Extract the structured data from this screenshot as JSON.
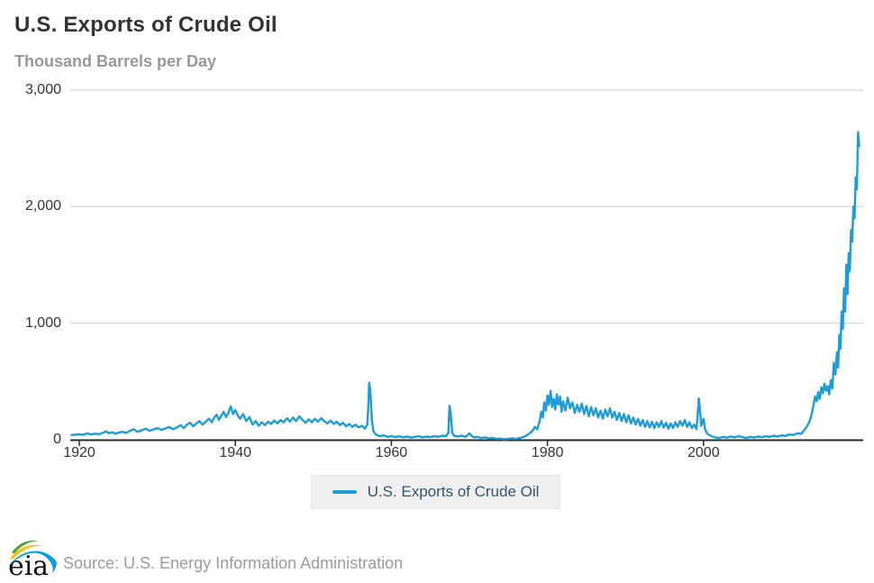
{
  "title": "U.S. Exports of Crude Oil",
  "subtitle": "Thousand Barrels per Day",
  "legend": {
    "label": "U.S. Exports of Crude Oil"
  },
  "source": "Source: U.S. Energy Information Administration",
  "logo": {
    "text": "eia"
  },
  "colors": {
    "line": "#1e9cd7",
    "grid": "#cccccc",
    "axis": "#2b2b2b",
    "title": "#333333",
    "subtitle": "#999999",
    "tick_label": "#333333",
    "legend_bg": "#f0f0f0",
    "legend_text": "#33566e",
    "source_text": "#9b9b9b",
    "logo_green": "#4fa02e",
    "logo_yellow": "#f2c213",
    "logo_blue": "#0c9ed9"
  },
  "chart_data": {
    "type": "line",
    "title": "U.S. Exports of Crude Oil",
    "xlabel": "",
    "ylabel": "Thousand Barrels per Day",
    "x_range": [
      1919,
      2020
    ],
    "ylim": [
      0,
      3000
    ],
    "grid": "horizontal",
    "legend_position": "bottom-center",
    "y_ticks": [
      {
        "value": 0,
        "label": "0"
      },
      {
        "value": 1000,
        "label": "1,000"
      },
      {
        "value": 2000,
        "label": "2,000"
      },
      {
        "value": 3000,
        "label": "3,000"
      }
    ],
    "x_ticks": [
      {
        "value": 1920,
        "label": "1920"
      },
      {
        "value": 1940,
        "label": "1940"
      },
      {
        "value": 1960,
        "label": "1960"
      },
      {
        "value": 1980,
        "label": "1980"
      },
      {
        "value": 2000,
        "label": "2000"
      }
    ],
    "series": [
      {
        "name": "U.S. Exports of Crude Oil",
        "color": "#1e9cd7",
        "points": [
          [
            1919,
            40
          ],
          [
            1920,
            47
          ],
          [
            1920.5,
            42
          ],
          [
            1921,
            55
          ],
          [
            1921.5,
            45
          ],
          [
            1922,
            52
          ],
          [
            1922.5,
            48
          ],
          [
            1923,
            58
          ],
          [
            1923.4,
            72
          ],
          [
            1923.8,
            55
          ],
          [
            1924.2,
            65
          ],
          [
            1924.6,
            52
          ],
          [
            1925,
            60
          ],
          [
            1925.5,
            68
          ],
          [
            1926,
            58
          ],
          [
            1926.5,
            78
          ],
          [
            1927,
            90
          ],
          [
            1927.4,
            68
          ],
          [
            1928,
            80
          ],
          [
            1928.5,
            95
          ],
          [
            1929,
            78
          ],
          [
            1929.5,
            88
          ],
          [
            1930,
            100
          ],
          [
            1930.5,
            85
          ],
          [
            1931,
            95
          ],
          [
            1931.5,
            110
          ],
          [
            1932,
            90
          ],
          [
            1932.5,
            105
          ],
          [
            1933,
            125
          ],
          [
            1933.4,
            100
          ],
          [
            1933.8,
            130
          ],
          [
            1934.2,
            145
          ],
          [
            1934.6,
            115
          ],
          [
            1935,
            140
          ],
          [
            1935.4,
            160
          ],
          [
            1935.8,
            130
          ],
          [
            1936.2,
            155
          ],
          [
            1936.6,
            180
          ],
          [
            1937,
            150
          ],
          [
            1937.3,
            190
          ],
          [
            1937.6,
            215
          ],
          [
            1937.9,
            170
          ],
          [
            1938.2,
            205
          ],
          [
            1938.5,
            240
          ],
          [
            1938.8,
            195
          ],
          [
            1939.1,
            230
          ],
          [
            1939.4,
            287
          ],
          [
            1939.7,
            220
          ],
          [
            1940,
            255
          ],
          [
            1940.3,
            210
          ],
          [
            1940.6,
            180
          ],
          [
            1941,
            220
          ],
          [
            1941.4,
            160
          ],
          [
            1941.8,
            195
          ],
          [
            1942.2,
            130
          ],
          [
            1942.6,
            160
          ],
          [
            1943,
            120
          ],
          [
            1943.4,
            150
          ],
          [
            1943.8,
            125
          ],
          [
            1944.2,
            155
          ],
          [
            1944.6,
            135
          ],
          [
            1945,
            165
          ],
          [
            1945.4,
            140
          ],
          [
            1945.8,
            170
          ],
          [
            1946.2,
            150
          ],
          [
            1946.6,
            185
          ],
          [
            1947,
            155
          ],
          [
            1947.4,
            190
          ],
          [
            1947.8,
            160
          ],
          [
            1948.2,
            200
          ],
          [
            1948.6,
            170
          ],
          [
            1949,
            145
          ],
          [
            1949.4,
            175
          ],
          [
            1949.8,
            150
          ],
          [
            1950.2,
            180
          ],
          [
            1950.6,
            155
          ],
          [
            1951,
            185
          ],
          [
            1951.4,
            160
          ],
          [
            1951.8,
            140
          ],
          [
            1952.2,
            165
          ],
          [
            1952.6,
            135
          ],
          [
            1953,
            155
          ],
          [
            1953.4,
            125
          ],
          [
            1953.8,
            145
          ],
          [
            1954.2,
            115
          ],
          [
            1954.6,
            135
          ],
          [
            1955,
            110
          ],
          [
            1955.4,
            130
          ],
          [
            1955.8,
            105
          ],
          [
            1956.2,
            120
          ],
          [
            1956.6,
            95
          ],
          [
            1956.9,
            130
          ],
          [
            1957.05,
            300
          ],
          [
            1957.15,
            490
          ],
          [
            1957.3,
            420
          ],
          [
            1957.5,
            160
          ],
          [
            1957.7,
            70
          ],
          [
            1958,
            45
          ],
          [
            1958.5,
            30
          ],
          [
            1959,
            38
          ],
          [
            1959.5,
            25
          ],
          [
            1960,
            32
          ],
          [
            1960.5,
            22
          ],
          [
            1961,
            30
          ],
          [
            1961.5,
            20
          ],
          [
            1962,
            28
          ],
          [
            1962.5,
            18
          ],
          [
            1963,
            25
          ],
          [
            1963.5,
            30
          ],
          [
            1964,
            20
          ],
          [
            1964.5,
            28
          ],
          [
            1965,
            22
          ],
          [
            1965.5,
            30
          ],
          [
            1966,
            25
          ],
          [
            1966.5,
            35
          ],
          [
            1967,
            30
          ],
          [
            1967.3,
            60
          ],
          [
            1967.45,
            290
          ],
          [
            1967.6,
            230
          ],
          [
            1967.8,
            60
          ],
          [
            1968,
            35
          ],
          [
            1968.5,
            28
          ],
          [
            1969,
            35
          ],
          [
            1969.5,
            25
          ],
          [
            1970,
            55
          ],
          [
            1970.3,
            30
          ],
          [
            1970.6,
            20
          ],
          [
            1971,
            25
          ],
          [
            1971.5,
            15
          ],
          [
            1972,
            20
          ],
          [
            1972.5,
            12
          ],
          [
            1973,
            15
          ],
          [
            1973.5,
            8
          ],
          [
            1974,
            10
          ],
          [
            1974.5,
            5
          ],
          [
            1975,
            8
          ],
          [
            1975.5,
            12
          ],
          [
            1976,
            8
          ],
          [
            1976.5,
            15
          ],
          [
            1977,
            25
          ],
          [
            1977.5,
            45
          ],
          [
            1978,
            70
          ],
          [
            1978.4,
            110
          ],
          [
            1978.7,
            90
          ],
          [
            1979,
            160
          ],
          [
            1979.2,
            240
          ],
          [
            1979.4,
            190
          ],
          [
            1979.6,
            320
          ],
          [
            1979.8,
            250
          ],
          [
            1980,
            380
          ],
          [
            1980.2,
            300
          ],
          [
            1980.4,
            420
          ],
          [
            1980.6,
            280
          ],
          [
            1980.8,
            350
          ],
          [
            1981,
            260
          ],
          [
            1981.2,
            390
          ],
          [
            1981.4,
            300
          ],
          [
            1981.6,
            370
          ],
          [
            1981.8,
            240
          ],
          [
            1982,
            330
          ],
          [
            1982.3,
            250
          ],
          [
            1982.6,
            360
          ],
          [
            1982.9,
            270
          ],
          [
            1983.2,
            320
          ],
          [
            1983.5,
            230
          ],
          [
            1983.8,
            300
          ],
          [
            1984.1,
            240
          ],
          [
            1984.4,
            310
          ],
          [
            1984.7,
            220
          ],
          [
            1985,
            290
          ],
          [
            1985.3,
            200
          ],
          [
            1985.6,
            280
          ],
          [
            1985.9,
            210
          ],
          [
            1986.2,
            270
          ],
          [
            1986.5,
            190
          ],
          [
            1986.8,
            250
          ],
          [
            1987.1,
            180
          ],
          [
            1987.4,
            260
          ],
          [
            1987.7,
            200
          ],
          [
            1988,
            270
          ],
          [
            1988.3,
            190
          ],
          [
            1988.6,
            240
          ],
          [
            1988.9,
            170
          ],
          [
            1989.2,
            230
          ],
          [
            1989.5,
            160
          ],
          [
            1989.8,
            220
          ],
          [
            1990.1,
            150
          ],
          [
            1990.4,
            210
          ],
          [
            1990.7,
            140
          ],
          [
            1991,
            190
          ],
          [
            1991.3,
            130
          ],
          [
            1991.6,
            180
          ],
          [
            1991.9,
            120
          ],
          [
            1992.2,
            170
          ],
          [
            1992.5,
            110
          ],
          [
            1992.8,
            160
          ],
          [
            1993.1,
            105
          ],
          [
            1993.4,
            155
          ],
          [
            1993.7,
            100
          ],
          [
            1994,
            150
          ],
          [
            1994.3,
            110
          ],
          [
            1994.6,
            160
          ],
          [
            1994.9,
            105
          ],
          [
            1995.2,
            145
          ],
          [
            1995.5,
            95
          ],
          [
            1995.8,
            140
          ],
          [
            1996.1,
            100
          ],
          [
            1996.4,
            150
          ],
          [
            1996.7,
            110
          ],
          [
            1997,
            160
          ],
          [
            1997.3,
            120
          ],
          [
            1997.6,
            170
          ],
          [
            1997.9,
            110
          ],
          [
            1998.2,
            150
          ],
          [
            1998.5,
            100
          ],
          [
            1998.8,
            130
          ],
          [
            1999.1,
            90
          ],
          [
            1999.4,
            355
          ],
          [
            1999.55,
            250
          ],
          [
            1999.7,
            120
          ],
          [
            2000,
            180
          ],
          [
            2000.2,
            90
          ],
          [
            2000.5,
            50
          ],
          [
            2001,
            30
          ],
          [
            2001.5,
            20
          ],
          [
            2002,
            15
          ],
          [
            2002.5,
            25
          ],
          [
            2003,
            18
          ],
          [
            2003.5,
            28
          ],
          [
            2004,
            20
          ],
          [
            2004.5,
            30
          ],
          [
            2005,
            22
          ],
          [
            2005.5,
            15
          ],
          [
            2006,
            25
          ],
          [
            2006.5,
            18
          ],
          [
            2007,
            28
          ],
          [
            2007.5,
            22
          ],
          [
            2008,
            30
          ],
          [
            2008.5,
            25
          ],
          [
            2009,
            35
          ],
          [
            2009.5,
            28
          ],
          [
            2010,
            38
          ],
          [
            2010.5,
            32
          ],
          [
            2011,
            45
          ],
          [
            2011.5,
            40
          ],
          [
            2012,
            55
          ],
          [
            2012.5,
            50
          ],
          [
            2013,
            90
          ],
          [
            2013.3,
            120
          ],
          [
            2013.6,
            160
          ],
          [
            2013.9,
            230
          ],
          [
            2014.1,
            300
          ],
          [
            2014.3,
            370
          ],
          [
            2014.5,
            330
          ],
          [
            2014.7,
            410
          ],
          [
            2014.9,
            350
          ],
          [
            2015.1,
            450
          ],
          [
            2015.3,
            400
          ],
          [
            2015.5,
            480
          ],
          [
            2015.7,
            420
          ],
          [
            2015.9,
            460
          ],
          [
            2016.1,
            390
          ],
          [
            2016.3,
            510
          ],
          [
            2016.5,
            440
          ],
          [
            2016.7,
            660
          ],
          [
            2016.9,
            560
          ],
          [
            2017.1,
            750
          ],
          [
            2017.25,
            620
          ],
          [
            2017.4,
            900
          ],
          [
            2017.55,
            780
          ],
          [
            2017.7,
            1100
          ],
          [
            2017.85,
            950
          ],
          [
            2018,
            1300
          ],
          [
            2018.15,
            1100
          ],
          [
            2018.3,
            1500
          ],
          [
            2018.45,
            1250
          ],
          [
            2018.6,
            1600
          ],
          [
            2018.75,
            1450
          ],
          [
            2018.9,
            1800
          ],
          [
            2019.05,
            1700
          ],
          [
            2019.2,
            2000
          ],
          [
            2019.35,
            1900
          ],
          [
            2019.5,
            2250
          ],
          [
            2019.65,
            2150
          ],
          [
            2019.8,
            2640
          ],
          [
            2019.95,
            2520
          ]
        ]
      }
    ]
  }
}
